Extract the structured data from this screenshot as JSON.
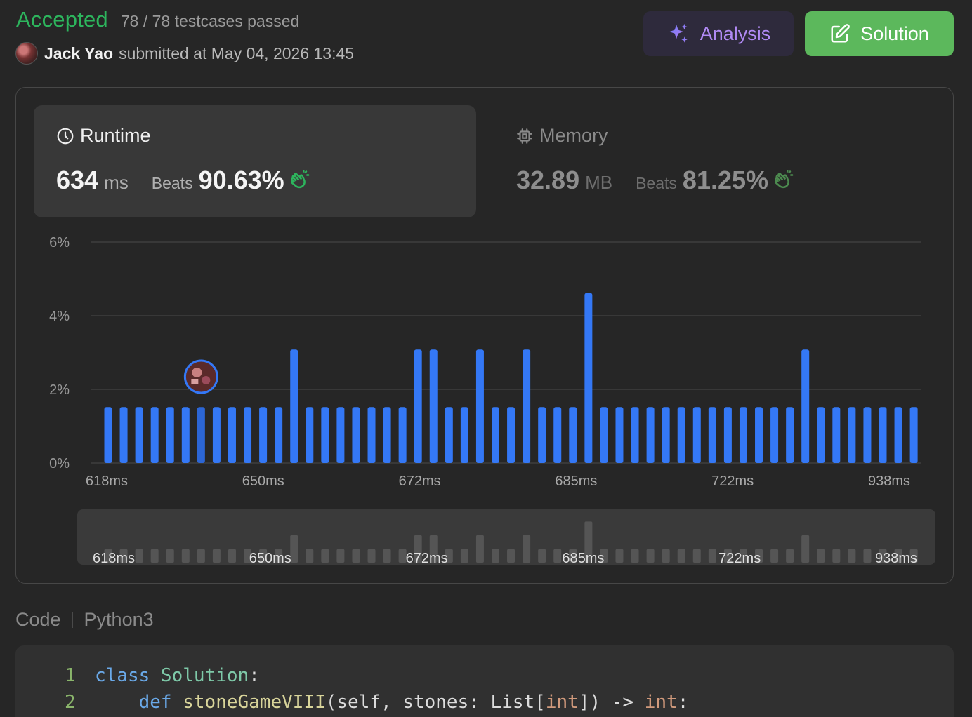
{
  "header": {
    "status": "Accepted",
    "testcases": "78 / 78 testcases passed",
    "submitter_name": "Jack Yao",
    "submitted_at": "submitted at May 04, 2026 13:45",
    "analysis_label": "Analysis",
    "solution_label": "Solution"
  },
  "runtime": {
    "title": "Runtime",
    "value": "634",
    "unit": "ms",
    "beats_label": "Beats",
    "beats_pct": "90.63%"
  },
  "memory": {
    "title": "Memory",
    "value": "32.89",
    "unit": "MB",
    "beats_label": "Beats",
    "beats_pct": "81.25%"
  },
  "chart_data": {
    "type": "bar",
    "title": "",
    "xlabel": "",
    "ylabel": "",
    "ylim": [
      0,
      6
    ],
    "yticks": [
      "0%",
      "2%",
      "4%",
      "6%"
    ],
    "xtick_labels": [
      "618ms",
      "650ms",
      "672ms",
      "685ms",
      "722ms",
      "938ms"
    ],
    "values": [
      1.52,
      1.52,
      1.52,
      1.52,
      1.52,
      1.52,
      1.52,
      1.52,
      1.52,
      1.52,
      1.52,
      1.52,
      3.08,
      1.52,
      1.52,
      1.52,
      1.52,
      1.52,
      1.52,
      1.52,
      3.08,
      3.08,
      1.52,
      1.52,
      3.08,
      1.52,
      1.52,
      3.08,
      1.52,
      1.52,
      1.52,
      4.62,
      1.52,
      1.52,
      1.52,
      1.52,
      1.52,
      1.52,
      1.52,
      1.52,
      1.52,
      1.52,
      1.52,
      1.52,
      1.52,
      3.08,
      1.52,
      1.52,
      1.52,
      1.52,
      1.52,
      1.52,
      1.52
    ],
    "highlight_index": 6,
    "grid": true,
    "bar_color": "#3478f6"
  },
  "code": {
    "label": "Code",
    "language": "Python3",
    "lines": [
      {
        "num": "1",
        "tokens": [
          [
            "kw",
            "class "
          ],
          [
            "cls",
            "Solution"
          ],
          [
            "",
            ":"
          ]
        ]
      },
      {
        "num": "2",
        "tokens": [
          [
            "",
            "    "
          ],
          [
            "kw",
            "def "
          ],
          [
            "fn",
            "stoneGameVIII"
          ],
          [
            "",
            "(self, stones: List["
          ],
          [
            "ty",
            "int"
          ],
          [
            "",
            "]) -> "
          ],
          [
            "ty",
            "int"
          ],
          [
            "",
            ":"
          ]
        ]
      }
    ]
  }
}
